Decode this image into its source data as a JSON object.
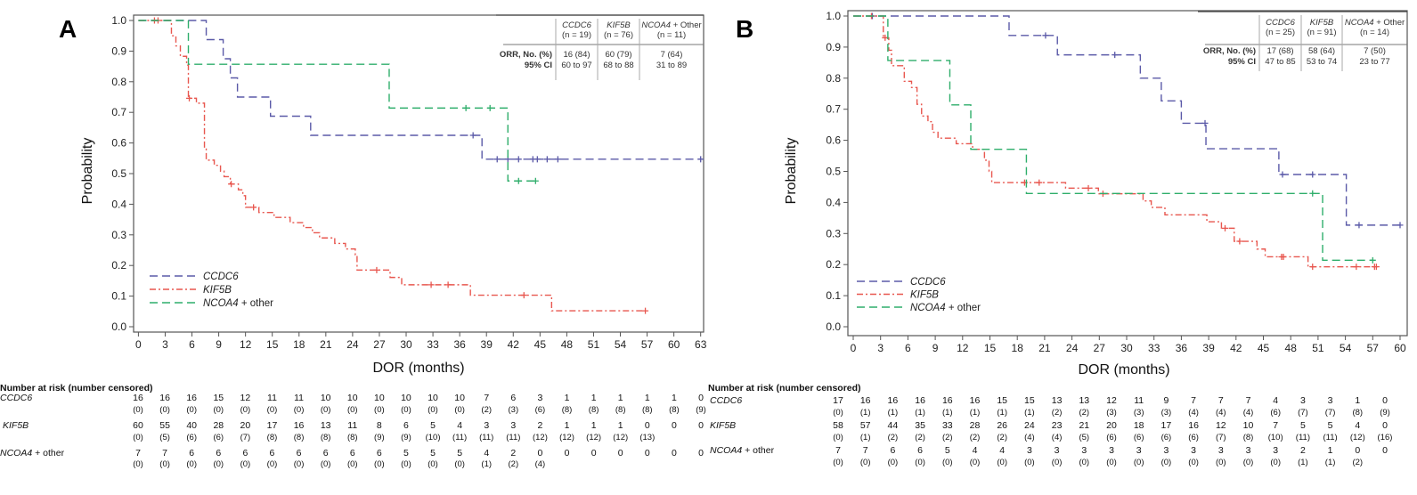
{
  "chart_data": [
    {
      "panel": "A",
      "type": "line",
      "subtype": "kaplan-meier",
      "xlabel": "DOR (months)",
      "ylabel": "Probability",
      "xlim": [
        0,
        63
      ],
      "ylim": [
        0,
        1
      ],
      "xticks": [
        0,
        3,
        6,
        9,
        12,
        15,
        18,
        21,
        24,
        27,
        30,
        33,
        36,
        39,
        42,
        45,
        48,
        51,
        54,
        57,
        60,
        63
      ],
      "yticks": [
        "0.0",
        "0.1",
        "0.2",
        "0.3",
        "0.4",
        "0.5",
        "0.6",
        "0.7",
        "0.8",
        "0.9",
        "1.0"
      ],
      "grid": false,
      "legend_position": "bottom-left",
      "series": [
        {
          "name": "CCDC6",
          "label_suffix": "",
          "color": "#5b5aa8",
          "dash": "dashed",
          "end": 63,
          "steps": [
            [
              7.6,
              0.9375
            ],
            [
              9.5,
              0.875
            ],
            [
              10.3,
              0.8125
            ],
            [
              11.1,
              0.75
            ],
            [
              14.8,
              0.6875
            ],
            [
              19.3,
              0.625
            ],
            [
              38.5,
              0.547
            ]
          ],
          "censors": [
            [
              37.5,
              0.625
            ],
            [
              40.2,
              0.547
            ],
            [
              41.4,
              0.547
            ],
            [
              42.6,
              0.547
            ],
            [
              44.2,
              0.547
            ],
            [
              44.7,
              0.547
            ],
            [
              45.8,
              0.547
            ],
            [
              47.0,
              0.547
            ],
            [
              63,
              0.547
            ]
          ]
        },
        {
          "name": "KIF5B",
          "label_suffix": "",
          "color": "#e8574f",
          "dash": "dash-dot",
          "end": 56.8,
          "steps": [
            [
              3.7,
              0.95
            ],
            [
              4.2,
              0.917
            ],
            [
              4.7,
              0.883
            ],
            [
              5.4,
              0.854
            ],
            [
              5.6,
              0.746
            ],
            [
              6.5,
              0.73
            ],
            [
              7.4,
              0.58
            ],
            [
              7.6,
              0.544
            ],
            [
              8.5,
              0.527
            ],
            [
              9.2,
              0.508
            ],
            [
              9.6,
              0.49
            ],
            [
              10.3,
              0.466
            ],
            [
              11.2,
              0.447
            ],
            [
              11.7,
              0.428
            ],
            [
              12.0,
              0.39
            ],
            [
              13.5,
              0.373
            ],
            [
              15.2,
              0.357
            ],
            [
              17.0,
              0.34
            ],
            [
              18.5,
              0.324
            ],
            [
              19.5,
              0.307
            ],
            [
              20.3,
              0.29
            ],
            [
              22.0,
              0.272
            ],
            [
              23.2,
              0.254
            ],
            [
              24.3,
              0.235
            ],
            [
              24.5,
              0.185
            ],
            [
              28.2,
              0.161
            ],
            [
              29.5,
              0.137
            ],
            [
              37.2,
              0.103
            ],
            [
              46.3,
              0.052
            ]
          ],
          "censors": [
            [
              1.8,
              1.0
            ],
            [
              2.2,
              1.0
            ],
            [
              5.7,
              0.746
            ],
            [
              10.4,
              0.466
            ],
            [
              12.9,
              0.39
            ],
            [
              26.7,
              0.185
            ],
            [
              32.8,
              0.137
            ],
            [
              34.7,
              0.137
            ],
            [
              43.2,
              0.103
            ],
            [
              56.8,
              0.052
            ]
          ]
        },
        {
          "name": "NCOA4",
          "label_suffix": " + other",
          "color": "#2fae6b",
          "dash": "dashed",
          "end": 44.5,
          "steps": [
            [
              5.6,
              0.857
            ],
            [
              28.1,
              0.714
            ],
            [
              41.4,
              0.476
            ]
          ],
          "censors": [
            [
              36.7,
              0.714
            ],
            [
              39.4,
              0.714
            ],
            [
              42.6,
              0.476
            ],
            [
              44.5,
              0.476
            ]
          ]
        }
      ],
      "orr_table": {
        "row_labels": [
          "ORR, No. (%)",
          "95% CI"
        ],
        "columns": [
          {
            "gene": "CCDC6",
            "suffix": "",
            "n": "(n = 19)",
            "orr": "16 (84)",
            "ci": "60 to 97"
          },
          {
            "gene": "KIF5B",
            "suffix": "",
            "n": "(n = 76)",
            "orr": "60 (79)",
            "ci": "68 to 88"
          },
          {
            "gene": "NCOA4",
            "suffix": " + Other",
            "n": "(n = 11)",
            "orr": "7 (64)",
            "ci": "31 to 89"
          }
        ]
      },
      "risk_table": {
        "title": "Number at risk (number censored)",
        "rows": [
          {
            "gene": "CCDC6",
            "suffix": "",
            "at_risk": [
              "16",
              "16",
              "16",
              "15",
              "12",
              "11",
              "11",
              "10",
              "10",
              "10",
              "10",
              "10",
              "10",
              "7",
              "6",
              "3",
              "1",
              "1",
              "1",
              "1",
              "1",
              "0"
            ],
            "censored": [
              "(0)",
              "(0)",
              "(0)",
              "(0)",
              "(0)",
              "(0)",
              "(0)",
              "(0)",
              "(0)",
              "(0)",
              "(0)",
              "(0)",
              "(0)",
              "(2)",
              "(3)",
              "(6)",
              "(8)",
              "(8)",
              "(8)",
              "(8)",
              "(8)",
              "(9)"
            ]
          },
          {
            "gene": "KIF5B",
            "suffix": "",
            "at_risk": [
              "60",
              "55",
              "40",
              "28",
              "20",
              "17",
              "16",
              "13",
              "11",
              "8",
              "6",
              "5",
              "4",
              "3",
              "3",
              "2",
              "1",
              "1",
              "1",
              "0",
              "0",
              "0"
            ],
            "censored": [
              "(0)",
              "(5)",
              "(6)",
              "(6)",
              "(7)",
              "(8)",
              "(8)",
              "(8)",
              "(8)",
              "(9)",
              "(9)",
              "(10)",
              "(11)",
              "(11)",
              "(11)",
              "(12)",
              "(12)",
              "(12)",
              "(12)",
              "(13)"
            ]
          },
          {
            "gene": "NCOA4",
            "suffix": " + other",
            "at_risk": [
              "7",
              "7",
              "6",
              "6",
              "6",
              "6",
              "6",
              "6",
              "6",
              "6",
              "5",
              "5",
              "5",
              "4",
              "2",
              "0",
              "0",
              "0",
              "0",
              "0",
              "0",
              "0"
            ],
            "censored": [
              "(0)",
              "(0)",
              "(0)",
              "(0)",
              "(0)",
              "(0)",
              "(0)",
              "(0)",
              "(0)",
              "(0)",
              "(0)",
              "(0)",
              "(0)",
              "(1)",
              "(2)",
              "(4)"
            ]
          }
        ]
      }
    },
    {
      "panel": "B",
      "type": "line",
      "subtype": "kaplan-meier",
      "xlabel": "DOR (months)",
      "ylabel": "Probability",
      "xlim": [
        0,
        60
      ],
      "ylim": [
        0,
        1
      ],
      "xticks": [
        0,
        3,
        6,
        9,
        12,
        15,
        18,
        21,
        24,
        27,
        30,
        33,
        36,
        39,
        42,
        45,
        48,
        51,
        54,
        57,
        60
      ],
      "yticks": [
        "0.0",
        "0.1",
        "0.2",
        "0.3",
        "0.4",
        "0.5",
        "0.6",
        "0.7",
        "0.8",
        "0.9",
        "1.0"
      ],
      "grid": false,
      "legend_position": "bottom-left",
      "series": [
        {
          "name": "CCDC6",
          "label_suffix": "",
          "color": "#5b5aa8",
          "dash": "dashed",
          "end": 60,
          "steps": [
            [
              17.1,
              0.9375
            ],
            [
              22.4,
              0.875
            ],
            [
              31.5,
              0.8
            ],
            [
              33.8,
              0.727
            ],
            [
              36.0,
              0.655
            ],
            [
              38.7,
              0.573
            ],
            [
              46.7,
              0.49
            ],
            [
              54.1,
              0.327
            ]
          ],
          "censors": [
            [
              2.1,
              1.0
            ],
            [
              21.1,
              0.9375
            ],
            [
              28.7,
              0.875
            ],
            [
              38.6,
              0.655
            ],
            [
              47.1,
              0.49
            ],
            [
              50.4,
              0.49
            ],
            [
              55.5,
              0.327
            ],
            [
              60,
              0.327
            ]
          ]
        },
        {
          "name": "KIF5B",
          "label_suffix": "",
          "color": "#e8574f",
          "dash": "dash-dot",
          "end": 57.4,
          "steps": [
            [
              3.3,
              0.93
            ],
            [
              3.9,
              0.89
            ],
            [
              4.2,
              0.84
            ],
            [
              5.6,
              0.79
            ],
            [
              6.4,
              0.77
            ],
            [
              7.0,
              0.716
            ],
            [
              7.5,
              0.678
            ],
            [
              8.2,
              0.66
            ],
            [
              8.7,
              0.626
            ],
            [
              9.3,
              0.607
            ],
            [
              11.3,
              0.589
            ],
            [
              13.1,
              0.571
            ],
            [
              14.4,
              0.536
            ],
            [
              14.9,
              0.5
            ],
            [
              15.2,
              0.464
            ],
            [
              23.3,
              0.446
            ],
            [
              26.9,
              0.428
            ],
            [
              31.8,
              0.405
            ],
            [
              32.7,
              0.384
            ],
            [
              34.2,
              0.36
            ],
            [
              38.8,
              0.338
            ],
            [
              40.4,
              0.317
            ],
            [
              41.8,
              0.275
            ],
            [
              44.3,
              0.25
            ],
            [
              45.2,
              0.225
            ],
            [
              49.9,
              0.193
            ]
          ],
          "censors": [
            [
              2.0,
              1.0
            ],
            [
              3.5,
              0.93
            ],
            [
              18.8,
              0.464
            ],
            [
              20.4,
              0.464
            ],
            [
              25.8,
              0.446
            ],
            [
              27.4,
              0.428
            ],
            [
              40.8,
              0.317
            ],
            [
              42.4,
              0.275
            ],
            [
              47.0,
              0.225
            ],
            [
              47.2,
              0.225
            ],
            [
              50.4,
              0.193
            ],
            [
              55.2,
              0.193
            ],
            [
              57.2,
              0.193
            ],
            [
              57.4,
              0.193
            ]
          ]
        },
        {
          "name": "NCOA4",
          "label_suffix": " + other",
          "color": "#2fae6b",
          "dash": "dashed",
          "end": 57,
          "steps": [
            [
              3.8,
              0.857
            ],
            [
              10.6,
              0.714
            ],
            [
              12.9,
              0.571
            ],
            [
              19.0,
              0.429
            ],
            [
              51.5,
              0.214
            ]
          ],
          "censors": [
            [
              50.4,
              0.429
            ],
            [
              57,
              0.214
            ]
          ]
        }
      ],
      "orr_table": {
        "row_labels": [
          "ORR, No. (%)",
          "95% CI"
        ],
        "columns": [
          {
            "gene": "CCDC6",
            "suffix": "",
            "n": "(n = 25)",
            "orr": "17 (68)",
            "ci": "47 to 85"
          },
          {
            "gene": "KIF5B",
            "suffix": "",
            "n": "(n = 91)",
            "orr": "58 (64)",
            "ci": "53 to 74"
          },
          {
            "gene": "NCOA4",
            "suffix": " + Other",
            "n": "(n = 14)",
            "orr": "7 (50)",
            "ci": "23 to 77"
          }
        ]
      },
      "risk_table": {
        "title": "Number at risk (number censored)",
        "rows": [
          {
            "gene": "CCDC6",
            "suffix": "",
            "at_risk": [
              "17",
              "16",
              "16",
              "16",
              "16",
              "16",
              "15",
              "15",
              "13",
              "13",
              "12",
              "11",
              "9",
              "7",
              "7",
              "7",
              "4",
              "3",
              "3",
              "1",
              "0"
            ],
            "censored": [
              "(0)",
              "(1)",
              "(1)",
              "(1)",
              "(1)",
              "(1)",
              "(1)",
              "(1)",
              "(2)",
              "(2)",
              "(3)",
              "(3)",
              "(3)",
              "(4)",
              "(4)",
              "(4)",
              "(6)",
              "(7)",
              "(7)",
              "(8)",
              "(9)"
            ]
          },
          {
            "gene": "KIF5B",
            "suffix": "",
            "at_risk": [
              "58",
              "57",
              "44",
              "35",
              "33",
              "28",
              "26",
              "24",
              "23",
              "21",
              "20",
              "18",
              "17",
              "16",
              "12",
              "10",
              "7",
              "5",
              "5",
              "4",
              "0"
            ],
            "censored": [
              "(0)",
              "(1)",
              "(2)",
              "(2)",
              "(2)",
              "(2)",
              "(2)",
              "(4)",
              "(4)",
              "(5)",
              "(6)",
              "(6)",
              "(6)",
              "(6)",
              "(7)",
              "(8)",
              "(10)",
              "(11)",
              "(11)",
              "(12)",
              "(16)"
            ]
          },
          {
            "gene": "NCOA4",
            "suffix": " + other",
            "at_risk": [
              "7",
              "7",
              "6",
              "6",
              "5",
              "4",
              "4",
              "3",
              "3",
              "3",
              "3",
              "3",
              "3",
              "3",
              "3",
              "3",
              "3",
              "2",
              "1",
              "0",
              "0"
            ],
            "censored": [
              "(0)",
              "(0)",
              "(0)",
              "(0)",
              "(0)",
              "(0)",
              "(0)",
              "(0)",
              "(0)",
              "(0)",
              "(0)",
              "(0)",
              "(0)",
              "(0)",
              "(0)",
              "(0)",
              "(0)",
              "(1)",
              "(1)",
              "(2)"
            ]
          }
        ]
      }
    }
  ]
}
